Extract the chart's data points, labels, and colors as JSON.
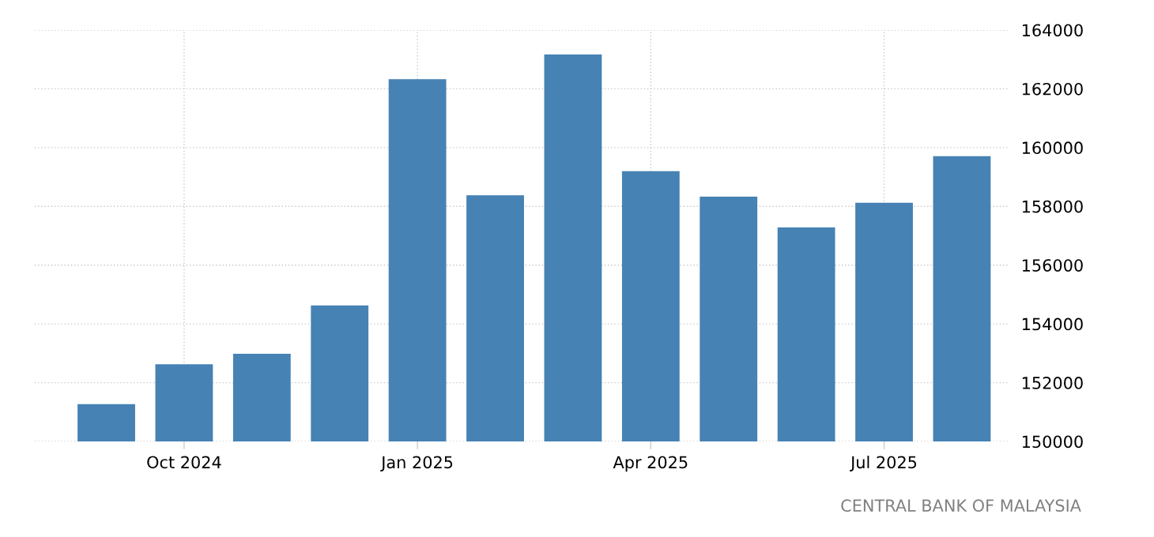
{
  "chart_data": {
    "type": "bar",
    "categories": [
      null,
      "Oct 2024",
      null,
      null,
      "Jan 2025",
      null,
      null,
      "Apr 2025",
      null,
      null,
      "Jul 2025",
      null
    ],
    "values": [
      151270,
      152630,
      152980,
      154630,
      162330,
      158380,
      163170,
      159200,
      158330,
      157280,
      158120,
      159710
    ],
    "color": "#4682b4",
    "ylim": [
      150000,
      164000
    ],
    "yticks": [
      150000,
      152000,
      154000,
      156000,
      158000,
      160000,
      162000,
      164000
    ],
    "grid": true,
    "annotations": [
      "CENTRAL BANK OF MALAYSIA"
    ]
  }
}
